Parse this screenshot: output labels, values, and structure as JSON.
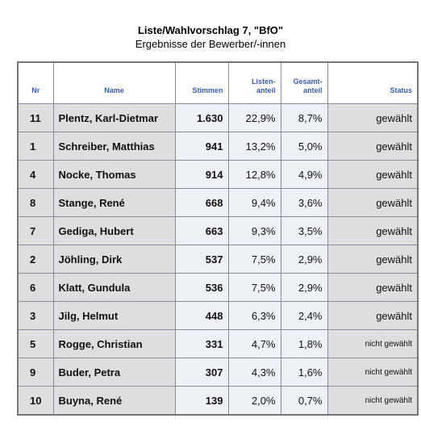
{
  "header": {
    "title": "Liste/Wahlvorschlag 7, \"BfO\"",
    "subtitle": "Ergebnisse der Bewerber/-innen"
  },
  "table": {
    "columns": [
      [
        "Nr"
      ],
      [
        "Name"
      ],
      [
        "Stimmen"
      ],
      [
        "Listen-",
        "anteil"
      ],
      [
        "Gesamt-",
        "anteil"
      ],
      [
        "Status"
      ]
    ],
    "rows": [
      [
        "11",
        "Plentz, Karl-Dietmar",
        "1.630",
        "22,9%",
        "8,7%",
        "gewählt"
      ],
      [
        "1",
        "Schreiber, Matthias",
        "941",
        "13,2%",
        "5,0%",
        "gewählt"
      ],
      [
        "4",
        "Nocke, Thomas",
        "914",
        "12,8%",
        "4,9%",
        "gewählt"
      ],
      [
        "8",
        "Stange, René",
        "668",
        "9,4%",
        "3,6%",
        "gewählt"
      ],
      [
        "7",
        "Gediga, Hubert",
        "663",
        "9,3%",
        "3,5%",
        "gewählt"
      ],
      [
        "2",
        "Jöhling, Dirk",
        "537",
        "7,5%",
        "2,9%",
        "gewählt"
      ],
      [
        "6",
        "Klatt, Gundula",
        "536",
        "7,5%",
        "2,9%",
        "gewählt"
      ],
      [
        "3",
        "Jilg, Helmut",
        "448",
        "6,3%",
        "2,4%",
        "gewählt"
      ],
      [
        "5",
        "Rogge, Christian",
        "331",
        "4,7%",
        "1,8%",
        "nicht gewählt"
      ],
      [
        "9",
        "Buder, Petra",
        "307",
        "4,3%",
        "1,6%",
        "nicht gewählt"
      ],
      [
        "10",
        "Buyna, René",
        "139",
        "2,0%",
        "0,7%",
        "nicht gewählt"
      ]
    ]
  }
}
